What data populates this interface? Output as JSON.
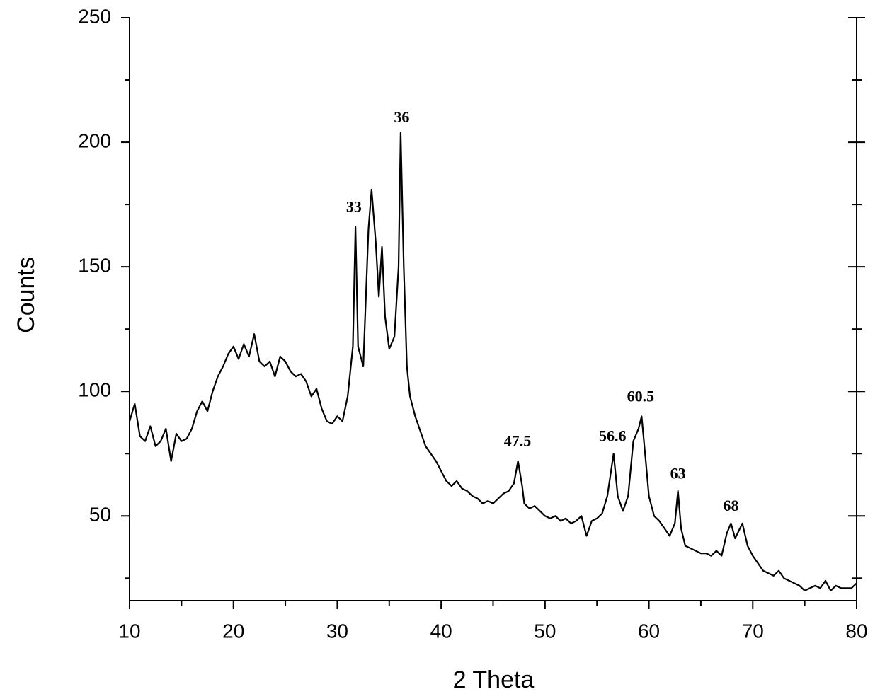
{
  "chart_data": {
    "type": "line",
    "xlabel": "2 Theta",
    "ylabel": "Counts",
    "color": "#000000",
    "xlim": [
      10,
      80
    ],
    "ylim": [
      16,
      250
    ],
    "xticks": [
      10,
      20,
      30,
      40,
      50,
      60,
      70,
      80
    ],
    "yticks": [
      50,
      100,
      150,
      200,
      250
    ],
    "xminorticks": [
      15,
      25,
      35,
      45,
      55,
      65,
      75
    ],
    "yminorticks": [
      25,
      75,
      125,
      175,
      225
    ],
    "x": [
      10,
      10.5,
      11,
      11.5,
      12,
      12.5,
      13,
      13.5,
      14,
      14.5,
      15,
      15.5,
      16,
      16.5,
      17,
      17.5,
      18,
      18.5,
      19,
      19.5,
      20,
      20.5,
      21,
      21.5,
      22,
      22.5,
      23,
      23.5,
      24,
      24.5,
      25,
      25.5,
      26,
      26.5,
      27,
      27.5,
      28,
      28.5,
      29,
      29.5,
      30,
      30.5,
      31,
      31.5,
      31.75,
      32,
      32.5,
      33,
      33.3,
      33.7,
      34,
      34.3,
      34.6,
      35,
      35.5,
      35.9,
      36.1,
      36.4,
      36.7,
      37,
      37.5,
      38,
      38.5,
      39,
      39.5,
      40,
      40.5,
      41,
      41.5,
      42,
      42.5,
      43,
      43.5,
      44,
      44.5,
      45,
      45.5,
      46,
      46.5,
      47,
      47.4,
      47.8,
      48,
      48.5,
      49,
      49.5,
      50,
      50.5,
      51,
      51.5,
      52,
      52.5,
      53,
      53.5,
      54,
      54.5,
      55,
      55.5,
      56,
      56.6,
      57,
      57.5,
      58,
      58.5,
      59,
      59.3,
      59.7,
      60,
      60.5,
      61,
      61.5,
      62,
      62.5,
      62.8,
      63.1,
      63.5,
      64,
      64.5,
      65,
      65.5,
      66,
      66.5,
      67,
      67.5,
      67.9,
      68.3,
      69,
      69.5,
      70,
      70.5,
      71,
      71.5,
      72,
      72.5,
      73,
      73.5,
      74,
      74.5,
      75,
      75.5,
      76,
      76.5,
      77,
      77.5,
      78,
      78.5,
      79,
      79.5,
      80
    ],
    "values": [
      88,
      95,
      82,
      80,
      86,
      78,
      80,
      85,
      72,
      83,
      80,
      81,
      85,
      92,
      96,
      92,
      100,
      106,
      110,
      115,
      118,
      113,
      119,
      114,
      123,
      112,
      110,
      112,
      106,
      114,
      112,
      108,
      106,
      107,
      104,
      98,
      101,
      93,
      88,
      87,
      90,
      88,
      98,
      118,
      166,
      118,
      110,
      165,
      181,
      160,
      138,
      158,
      130,
      117,
      122,
      150,
      204,
      150,
      110,
      98,
      90,
      84,
      78,
      75,
      72,
      68,
      64,
      62,
      64,
      61,
      60,
      58,
      57,
      55,
      56,
      55,
      57,
      59,
      60,
      63,
      72,
      62,
      55,
      53,
      54,
      52,
      50,
      49,
      50,
      48,
      49,
      47,
      48,
      50,
      42,
      48,
      49,
      51,
      58,
      75,
      58,
      52,
      58,
      80,
      85,
      90,
      72,
      58,
      50,
      48,
      45,
      42,
      47,
      60,
      45,
      38,
      37,
      36,
      35,
      35,
      34,
      36,
      34,
      43,
      47,
      41,
      47,
      38,
      34,
      31,
      28,
      27,
      26,
      28,
      25,
      24,
      23,
      22,
      20,
      21,
      22,
      21,
      24,
      20,
      22,
      21,
      21,
      21,
      23
    ],
    "annotations": [
      {
        "text": "33",
        "x": 31.6,
        "y": 172
      },
      {
        "text": "36",
        "x": 36.2,
        "y": 208
      },
      {
        "text": "47.5",
        "x": 47.35,
        "y": 78
      },
      {
        "text": "56.6",
        "x": 56.5,
        "y": 80
      },
      {
        "text": "60.5",
        "x": 59.2,
        "y": 96
      },
      {
        "text": "63",
        "x": 62.8,
        "y": 65
      },
      {
        "text": "68",
        "x": 67.9,
        "y": 52
      }
    ]
  }
}
